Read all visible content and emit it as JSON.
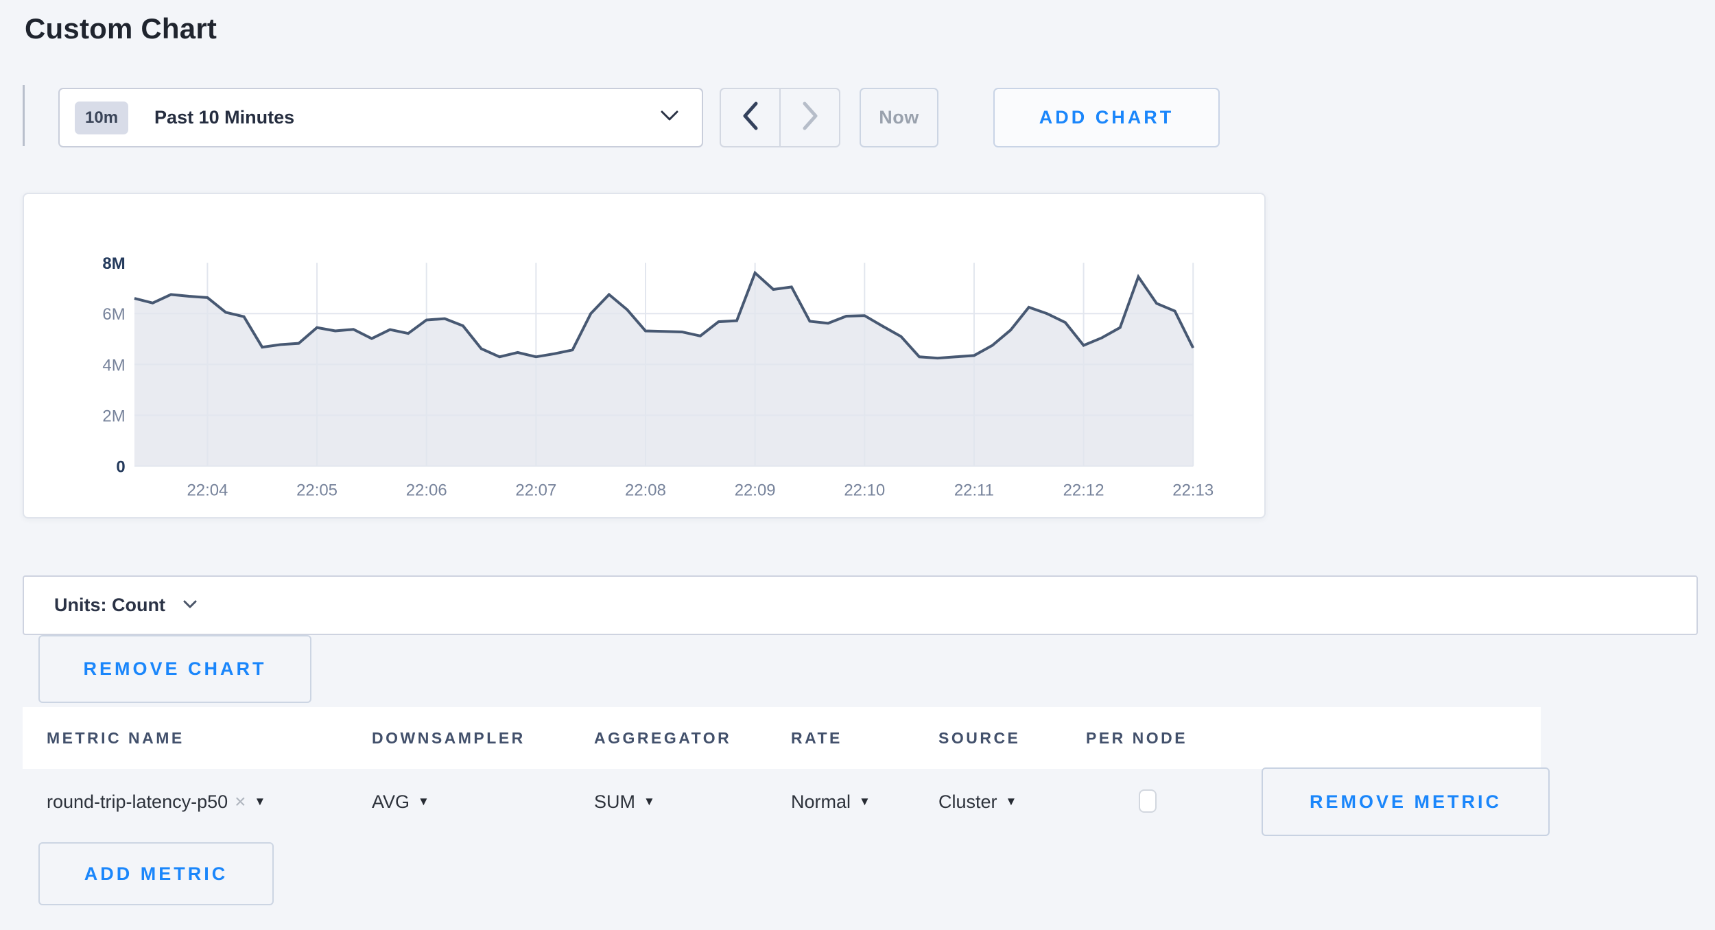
{
  "page": {
    "title": "Custom Chart"
  },
  "time_controls": {
    "range_badge": "10m",
    "range_label": "Past 10 Minutes",
    "now_label": "Now",
    "add_chart_label": "ADD CHART"
  },
  "chart_data": {
    "type": "area",
    "title": "",
    "xlabel": "",
    "ylabel": "",
    "unit": "count",
    "ylim": [
      0,
      8000000
    ],
    "y_tick_labels": [
      "8M",
      "6M",
      "4M",
      "2M",
      "0"
    ],
    "x_ticks": [
      "22:04",
      "22:05",
      "22:06",
      "22:07",
      "22:08",
      "22:09",
      "22:10",
      "22:11",
      "22:12",
      "22:13"
    ],
    "x_start": "22:03:20",
    "x_interval_seconds": 10,
    "grid": true,
    "legend": "none",
    "series": [
      {
        "name": "round-trip-latency-p50",
        "values_millions": [
          6.6,
          6.42,
          6.75,
          6.68,
          6.63,
          6.05,
          5.88,
          4.68,
          4.78,
          4.83,
          5.45,
          5.32,
          5.38,
          5.02,
          5.37,
          5.22,
          5.75,
          5.8,
          5.52,
          4.62,
          4.3,
          4.47,
          4.3,
          4.42,
          4.57,
          6.0,
          6.75,
          6.15,
          5.32,
          5.3,
          5.28,
          5.12,
          5.68,
          5.72,
          7.6,
          6.95,
          7.05,
          5.7,
          5.62,
          5.9,
          5.92,
          5.5,
          5.1,
          4.3,
          4.25,
          4.3,
          4.35,
          4.75,
          5.35,
          6.25,
          6.0,
          5.65,
          4.75,
          5.05,
          5.45,
          7.45,
          6.4,
          6.1,
          4.65
        ]
      }
    ],
    "style": {
      "line_color": "#475872",
      "fill_color": "#e9ebf1",
      "grid_color": "#e2e6ee",
      "tick_color": "#77839b",
      "tick_strong_color": "#243a5c"
    }
  },
  "units_bar": {
    "label": "Units: Count"
  },
  "buttons": {
    "remove_chart": "REMOVE CHART",
    "remove_metric": "REMOVE METRIC",
    "add_metric": "ADD METRIC"
  },
  "metrics_table": {
    "headers": [
      "METRIC NAME",
      "DOWNSAMPLER",
      "AGGREGATOR",
      "RATE",
      "SOURCE",
      "PER NODE"
    ],
    "rows": [
      {
        "metric_name": "round-trip-latency-p50",
        "downsampler": "AVG",
        "aggregator": "SUM",
        "rate": "Normal",
        "source": "Cluster",
        "per_node_checked": false
      }
    ]
  },
  "colors": {
    "accent_blue": "#1a86fb",
    "page_background": "#f3f5f9"
  }
}
